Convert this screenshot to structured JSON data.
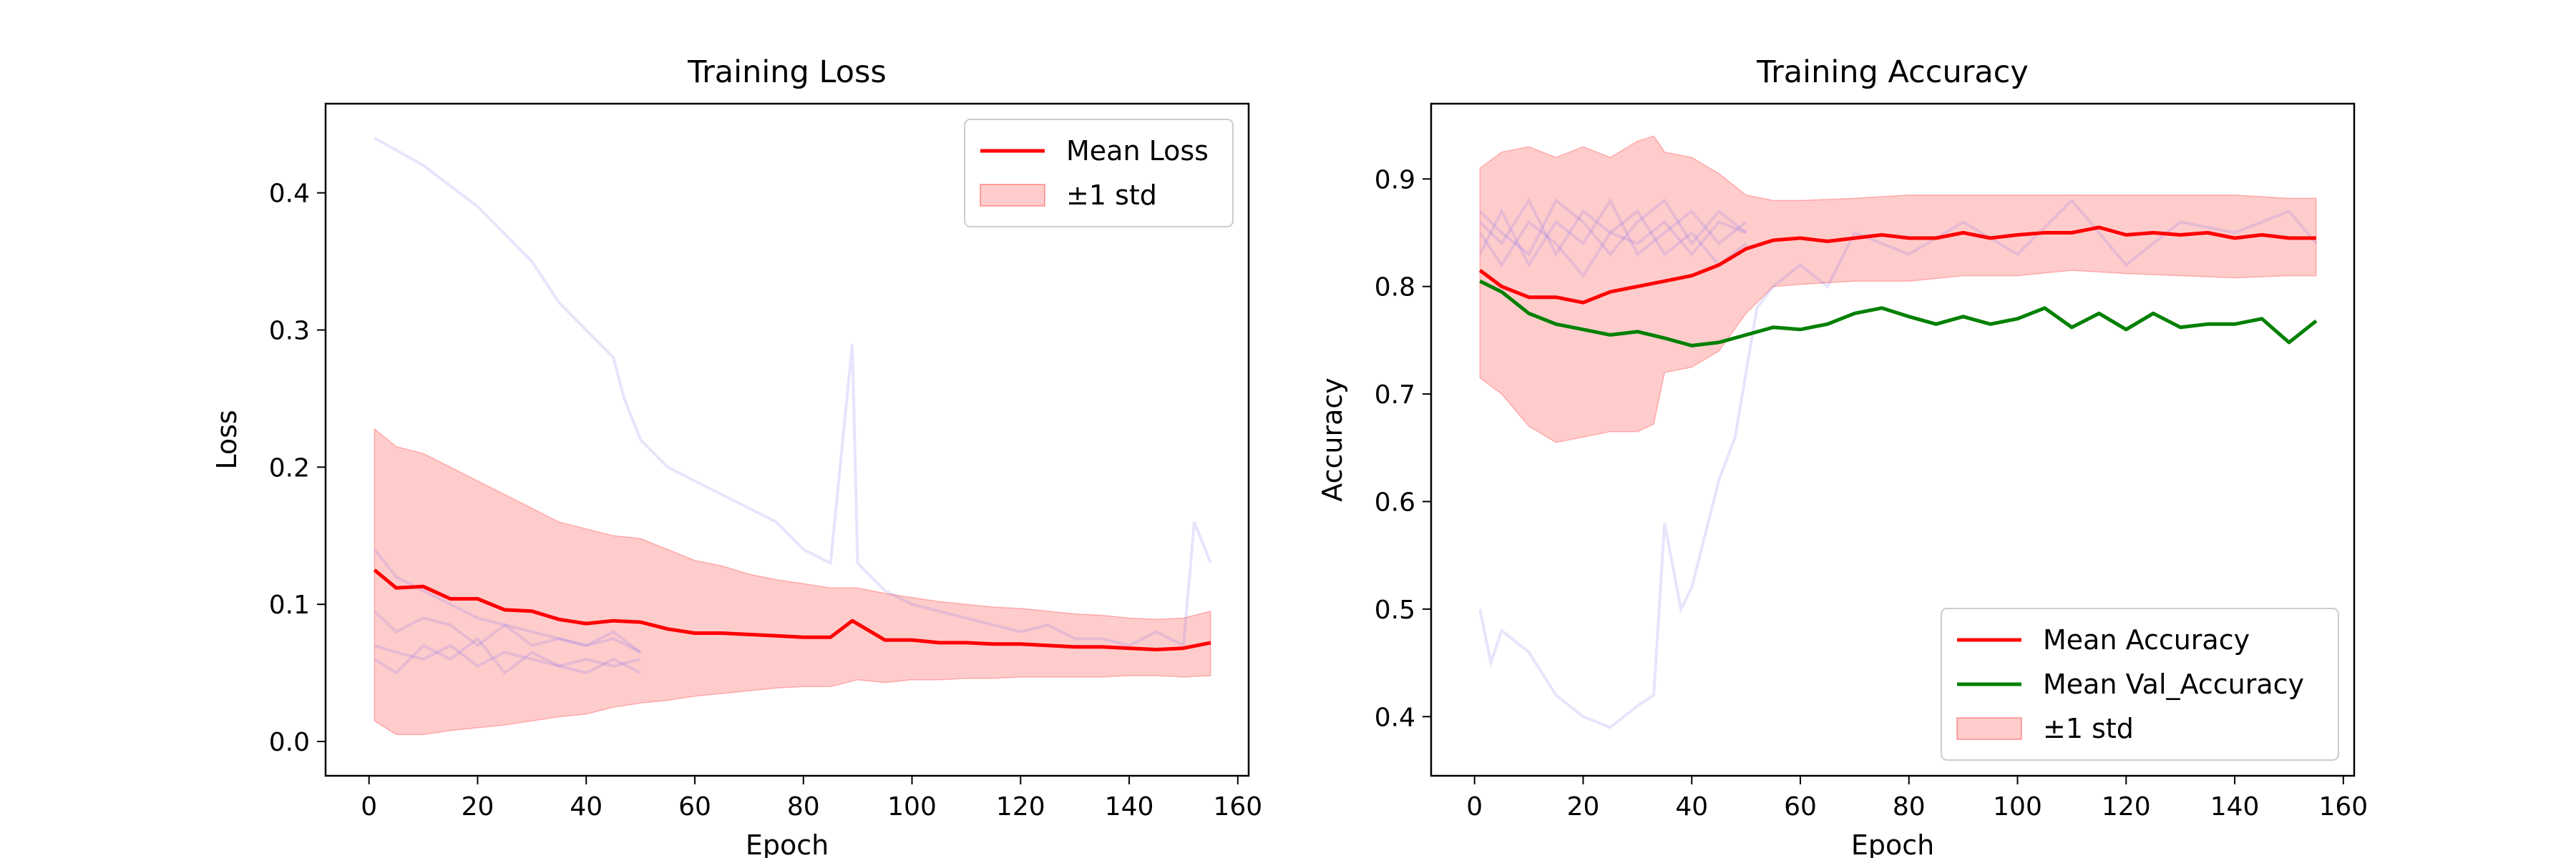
{
  "chart_data": [
    {
      "type": "line",
      "title": "Training Loss",
      "xlabel": "Epoch",
      "ylabel": "Loss",
      "xlim": [
        -8,
        162
      ],
      "ylim": [
        -0.025,
        0.465
      ],
      "xticks": [
        0,
        20,
        40,
        60,
        80,
        100,
        120,
        140,
        160
      ],
      "yticks": [
        0.0,
        0.1,
        0.2,
        0.3,
        0.4
      ],
      "yticks_text": [
        "0.0",
        "0.1",
        "0.2",
        "0.3",
        "0.4"
      ],
      "grid": false,
      "legend_position": "top-right",
      "legend": [
        "Mean Loss",
        "±1 std"
      ],
      "colors": {
        "mean": "#ff0000",
        "band": "#ff0000",
        "runs": "#7b68ee"
      },
      "mean_series": {
        "name": "Mean Loss",
        "x": [
          1,
          5,
          10,
          15,
          20,
          25,
          30,
          35,
          40,
          45,
          50,
          55,
          60,
          65,
          70,
          75,
          80,
          85,
          89,
          95,
          100,
          105,
          110,
          115,
          120,
          125,
          130,
          135,
          140,
          145,
          150,
          155
        ],
        "y": [
          0.125,
          0.112,
          0.113,
          0.104,
          0.104,
          0.096,
          0.095,
          0.089,
          0.086,
          0.088,
          0.087,
          0.082,
          0.079,
          0.079,
          0.078,
          0.077,
          0.076,
          0.076,
          0.088,
          0.074,
          0.074,
          0.072,
          0.072,
          0.071,
          0.071,
          0.07,
          0.069,
          0.069,
          0.068,
          0.067,
          0.068,
          0.072
        ]
      },
      "std_band": {
        "name": "±1 std",
        "x": [
          1,
          5,
          10,
          15,
          20,
          25,
          30,
          35,
          40,
          45,
          50,
          55,
          60,
          65,
          70,
          75,
          80,
          85,
          90,
          95,
          100,
          105,
          110,
          115,
          120,
          125,
          130,
          135,
          140,
          145,
          150,
          155
        ],
        "upper": [
          0.228,
          0.215,
          0.21,
          0.2,
          0.19,
          0.18,
          0.17,
          0.16,
          0.155,
          0.15,
          0.148,
          0.14,
          0.132,
          0.128,
          0.122,
          0.118,
          0.115,
          0.112,
          0.112,
          0.108,
          0.105,
          0.102,
          0.1,
          0.098,
          0.097,
          0.095,
          0.093,
          0.092,
          0.09,
          0.089,
          0.09,
          0.095
        ],
        "lower": [
          0.015,
          0.005,
          0.005,
          0.008,
          0.01,
          0.012,
          0.015,
          0.018,
          0.02,
          0.025,
          0.028,
          0.03,
          0.033,
          0.035,
          0.037,
          0.039,
          0.04,
          0.04,
          0.045,
          0.043,
          0.045,
          0.045,
          0.046,
          0.046,
          0.047,
          0.047,
          0.047,
          0.047,
          0.048,
          0.048,
          0.047,
          0.048
        ]
      },
      "run_series": [
        {
          "x": [
            1,
            10,
            20,
            30,
            35,
            40,
            45,
            47,
            50,
            55,
            60,
            65,
            70,
            75,
            80,
            85,
            89,
            90,
            95,
            100,
            105,
            110,
            115,
            120,
            125,
            130,
            135,
            140,
            145,
            150,
            152,
            155
          ],
          "y": [
            0.44,
            0.42,
            0.39,
            0.35,
            0.32,
            0.3,
            0.28,
            0.25,
            0.22,
            0.2,
            0.19,
            0.18,
            0.17,
            0.16,
            0.14,
            0.13,
            0.29,
            0.13,
            0.11,
            0.1,
            0.095,
            0.09,
            0.085,
            0.08,
            0.085,
            0.075,
            0.075,
            0.07,
            0.08,
            0.07,
            0.16,
            0.13
          ]
        },
        {
          "x": [
            1,
            5,
            10,
            15,
            20,
            25,
            30,
            35,
            40,
            45,
            50
          ],
          "y": [
            0.095,
            0.08,
            0.09,
            0.085,
            0.07,
            0.085,
            0.07,
            0.075,
            0.07,
            0.08,
            0.065
          ]
        },
        {
          "x": [
            1,
            5,
            10,
            15,
            20,
            25,
            30,
            35,
            40,
            45,
            50
          ],
          "y": [
            0.07,
            0.065,
            0.06,
            0.07,
            0.055,
            0.065,
            0.06,
            0.055,
            0.05,
            0.06,
            0.05
          ]
        },
        {
          "x": [
            1,
            5,
            10,
            15,
            20,
            25,
            30,
            35,
            40,
            45,
            50
          ],
          "y": [
            0.06,
            0.05,
            0.07,
            0.06,
            0.075,
            0.05,
            0.065,
            0.055,
            0.06,
            0.055,
            0.06
          ]
        },
        {
          "x": [
            1,
            5,
            10,
            15,
            20,
            25,
            30,
            35,
            40,
            45,
            50
          ],
          "y": [
            0.14,
            0.12,
            0.11,
            0.1,
            0.09,
            0.085,
            0.08,
            0.075,
            0.07,
            0.075,
            0.065
          ]
        }
      ]
    },
    {
      "type": "line",
      "title": "Training Accuracy",
      "xlabel": "Epoch",
      "ylabel": "Accuracy",
      "xlim": [
        -8,
        162
      ],
      "ylim": [
        0.345,
        0.97
      ],
      "xticks": [
        0,
        20,
        40,
        60,
        80,
        100,
        120,
        140,
        160
      ],
      "yticks": [
        0.4,
        0.5,
        0.6,
        0.7,
        0.8,
        0.9
      ],
      "yticks_text": [
        "0.4",
        "0.5",
        "0.6",
        "0.7",
        "0.8",
        "0.9"
      ],
      "grid": false,
      "legend_position": "bottom-right",
      "legend": [
        "Mean Accuracy",
        "Mean Val_Accuracy",
        "±1 std"
      ],
      "colors": {
        "mean": "#ff0000",
        "val": "#008000",
        "band": "#ff0000",
        "runs": "#7b68ee"
      },
      "mean_series": {
        "name": "Mean Accuracy",
        "x": [
          1,
          5,
          10,
          15,
          20,
          25,
          30,
          35,
          40,
          45,
          50,
          55,
          60,
          65,
          70,
          75,
          80,
          85,
          90,
          95,
          100,
          105,
          110,
          115,
          120,
          125,
          130,
          135,
          140,
          145,
          150,
          155
        ],
        "y": [
          0.815,
          0.8,
          0.79,
          0.79,
          0.785,
          0.795,
          0.8,
          0.805,
          0.81,
          0.82,
          0.835,
          0.843,
          0.845,
          0.842,
          0.845,
          0.848,
          0.845,
          0.845,
          0.85,
          0.845,
          0.848,
          0.85,
          0.85,
          0.855,
          0.848,
          0.85,
          0.848,
          0.85,
          0.845,
          0.848,
          0.845,
          0.845
        ]
      },
      "val_series": {
        "name": "Mean Val_Accuracy",
        "x": [
          1,
          5,
          10,
          15,
          20,
          25,
          30,
          35,
          40,
          45,
          50,
          55,
          60,
          65,
          70,
          75,
          80,
          85,
          90,
          95,
          100,
          105,
          110,
          115,
          120,
          125,
          130,
          135,
          140,
          145,
          150,
          155
        ],
        "y": [
          0.805,
          0.795,
          0.775,
          0.765,
          0.76,
          0.755,
          0.758,
          0.752,
          0.745,
          0.748,
          0.755,
          0.762,
          0.76,
          0.765,
          0.775,
          0.78,
          0.772,
          0.765,
          0.772,
          0.765,
          0.77,
          0.78,
          0.762,
          0.775,
          0.76,
          0.775,
          0.762,
          0.765,
          0.765,
          0.77,
          0.748,
          0.768
        ]
      },
      "std_band": {
        "name": "±1 std",
        "x": [
          1,
          5,
          10,
          15,
          20,
          25,
          30,
          33,
          35,
          40,
          45,
          50,
          55,
          60,
          70,
          80,
          90,
          100,
          110,
          120,
          130,
          140,
          150,
          155
        ],
        "upper": [
          0.91,
          0.925,
          0.93,
          0.92,
          0.93,
          0.92,
          0.935,
          0.94,
          0.925,
          0.92,
          0.905,
          0.885,
          0.88,
          0.88,
          0.882,
          0.885,
          0.885,
          0.885,
          0.885,
          0.885,
          0.885,
          0.885,
          0.882,
          0.882
        ],
        "lower": [
          0.715,
          0.7,
          0.67,
          0.655,
          0.66,
          0.665,
          0.665,
          0.672,
          0.72,
          0.725,
          0.74,
          0.775,
          0.8,
          0.802,
          0.805,
          0.805,
          0.81,
          0.81,
          0.815,
          0.812,
          0.81,
          0.808,
          0.81,
          0.81
        ]
      },
      "run_series": [
        {
          "x": [
            1,
            3,
            5,
            10,
            15,
            20,
            25,
            30,
            33,
            35,
            38,
            40,
            42,
            45,
            48,
            50,
            52,
            55,
            60,
            65,
            70,
            80,
            90,
            100,
            110,
            120,
            130,
            140,
            150,
            155
          ],
          "y": [
            0.5,
            0.45,
            0.48,
            0.46,
            0.42,
            0.4,
            0.39,
            0.41,
            0.42,
            0.58,
            0.5,
            0.52,
            0.56,
            0.62,
            0.66,
            0.72,
            0.78,
            0.8,
            0.82,
            0.8,
            0.85,
            0.83,
            0.86,
            0.83,
            0.88,
            0.82,
            0.86,
            0.85,
            0.87,
            0.84
          ]
        },
        {
          "x": [
            1,
            5,
            10,
            15,
            20,
            25,
            30,
            35,
            40,
            45,
            50
          ],
          "y": [
            0.86,
            0.84,
            0.88,
            0.83,
            0.87,
            0.85,
            0.84,
            0.86,
            0.83,
            0.86,
            0.85
          ]
        },
        {
          "x": [
            1,
            5,
            10,
            15,
            20,
            25,
            30,
            35,
            40,
            45,
            50
          ],
          "y": [
            0.83,
            0.87,
            0.82,
            0.86,
            0.84,
            0.88,
            0.83,
            0.85,
            0.87,
            0.84,
            0.86
          ]
        },
        {
          "x": [
            1,
            5,
            10,
            15,
            20,
            25,
            30,
            35,
            40,
            45,
            50
          ],
          "y": [
            0.85,
            0.82,
            0.86,
            0.84,
            0.81,
            0.85,
            0.87,
            0.83,
            0.85,
            0.82,
            0.84
          ]
        },
        {
          "x": [
            1,
            5,
            10,
            15,
            20,
            25,
            30,
            35,
            40,
            45,
            50
          ],
          "y": [
            0.87,
            0.85,
            0.83,
            0.88,
            0.86,
            0.83,
            0.86,
            0.88,
            0.84,
            0.87,
            0.85
          ]
        }
      ]
    }
  ]
}
